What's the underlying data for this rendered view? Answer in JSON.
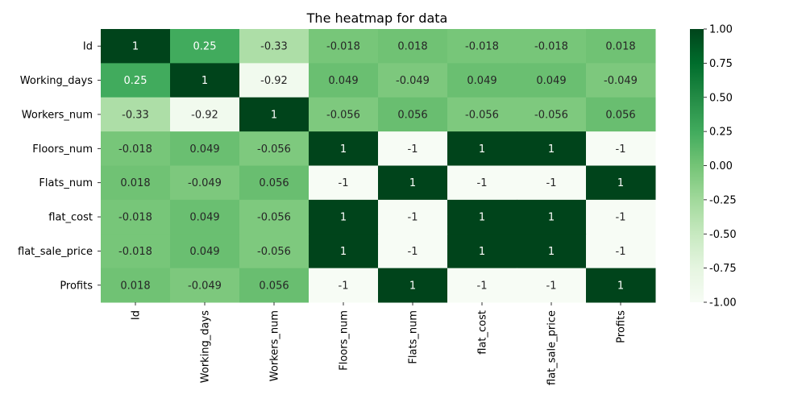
{
  "chart_data": {
    "type": "heatmap",
    "title": "The heatmap for data",
    "rows": [
      "Id",
      "Working_days",
      "Workers_num",
      "Floors_num",
      "Flats_num",
      "flat_cost",
      "flat_sale_price",
      "Profits"
    ],
    "columns": [
      "Id",
      "Working_days",
      "Workers_num",
      "Floors_num",
      "Flats_num",
      "flat_cost",
      "flat_sale_price",
      "Profits"
    ],
    "values": [
      [
        1,
        0.25,
        -0.33,
        -0.018,
        0.018,
        -0.018,
        -0.018,
        0.018
      ],
      [
        0.25,
        1,
        -0.92,
        0.049,
        -0.049,
        0.049,
        0.049,
        -0.049
      ],
      [
        -0.33,
        -0.92,
        1,
        -0.056,
        0.056,
        -0.056,
        -0.056,
        0.056
      ],
      [
        -0.018,
        0.049,
        -0.056,
        1,
        -1,
        1,
        1,
        -1
      ],
      [
        0.018,
        -0.049,
        0.056,
        -1,
        1,
        -1,
        -1,
        1
      ],
      [
        -0.018,
        0.049,
        -0.056,
        1,
        -1,
        1,
        1,
        -1
      ],
      [
        -0.018,
        0.049,
        -0.056,
        1,
        -1,
        1,
        1,
        -1
      ],
      [
        0.018,
        -0.049,
        0.056,
        -1,
        1,
        -1,
        -1,
        1
      ]
    ],
    "cell_labels": [
      [
        "1",
        "0.25",
        "-0.33",
        "-0.018",
        "0.018",
        "-0.018",
        "-0.018",
        "0.018"
      ],
      [
        "0.25",
        "1",
        "-0.92",
        "0.049",
        "-0.049",
        "0.049",
        "0.049",
        "-0.049"
      ],
      [
        "-0.33",
        "-0.92",
        "1",
        "-0.056",
        "0.056",
        "-0.056",
        "-0.056",
        "0.056"
      ],
      [
        "-0.018",
        "0.049",
        "-0.056",
        "1",
        "-1",
        "1",
        "1",
        "-1"
      ],
      [
        "0.018",
        "-0.049",
        "0.056",
        "-1",
        "1",
        "-1",
        "-1",
        "1"
      ],
      [
        "-0.018",
        "0.049",
        "-0.056",
        "1",
        "-1",
        "1",
        "1",
        "-1"
      ],
      [
        "-0.018",
        "0.049",
        "-0.056",
        "1",
        "-1",
        "1",
        "1",
        "-1"
      ],
      [
        "0.018",
        "-0.049",
        "0.056",
        "-1",
        "1",
        "-1",
        "-1",
        "1"
      ]
    ],
    "colorbar": {
      "range": [
        -1.0,
        1.0
      ],
      "ticks": [
        "1.00",
        "0.75",
        "0.50",
        "0.25",
        "0.00",
        "-0.25",
        "-0.50",
        "-0.75",
        "-1.00"
      ]
    },
    "colormap": "Greens",
    "colors": [
      "#f7fcf5",
      "#e5f5e0",
      "#c7e9c0",
      "#a1d99b",
      "#74c476",
      "#41ab5d",
      "#238b45",
      "#006d2c",
      "#00441b"
    ]
  }
}
